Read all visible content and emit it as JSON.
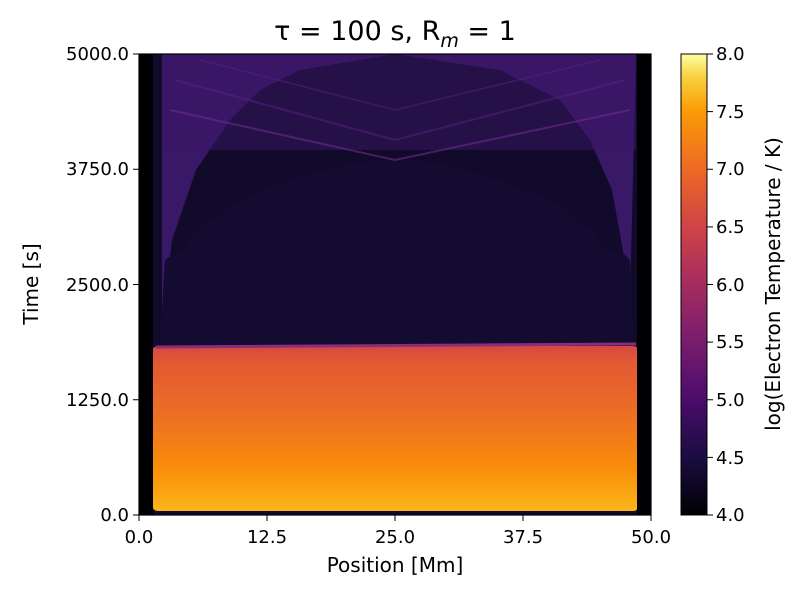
{
  "chart_data": {
    "type": "heatmap",
    "title": "τ = 100 s, R",
    "title_subscript": "m",
    "title_suffix": " = 1",
    "xlabel": "Position [Mm]",
    "ylabel": "Time [s]",
    "xlim": [
      0.0,
      50.0
    ],
    "ylim": [
      0.0,
      5000.0
    ],
    "xticks": [
      0.0,
      12.5,
      25.0,
      37.5,
      50.0
    ],
    "yticks": [
      0.0,
      1250.0,
      2500.0,
      3750.0,
      5000.0
    ],
    "colorbar": {
      "label": "log(Electron Temperature / K)",
      "range": [
        4.0,
        8.0
      ],
      "ticks": [
        4.0,
        4.5,
        5.0,
        5.5,
        6.0,
        6.5,
        7.0,
        7.5,
        8.0
      ],
      "colormap": "inferno"
    },
    "regions": [
      {
        "name": "hot-loop",
        "x_range": [
          1.2,
          48.8
        ],
        "t_range": [
          0,
          1830
        ],
        "log_T_start": 7.4,
        "log_T_end": 6.8
      },
      {
        "name": "cooled-loop",
        "x_range": [
          1.6,
          48.4
        ],
        "t_range": [
          1830,
          3200
        ],
        "log_T": 4.2
      },
      {
        "name": "reheated-legs",
        "t_range": [
          2300,
          5000
        ],
        "log_T": 5.0
      },
      {
        "name": "chromosphere",
        "x_range_left": [
          0,
          1.2
        ],
        "x_range_right": [
          48.8,
          50
        ],
        "log_T": 4.0
      }
    ]
  }
}
